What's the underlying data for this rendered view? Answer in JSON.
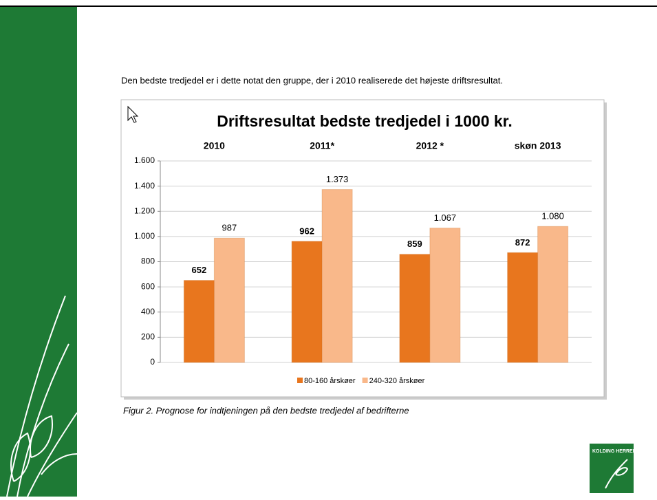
{
  "intro": "Den bedste tredjedel er i dette notat den gruppe, der i 2010 realiserede det højeste driftsresultat.",
  "caption": "Figur 2. Prognose for indtjeningen på den bedste tredjedel af bedrifterne",
  "logo": "KOLDING HERREDS",
  "chart_data": {
    "type": "bar",
    "title": "Driftsresultat bedste tredjedel i 1000 kr.",
    "categories": [
      "2010",
      "2011*",
      "2012 *",
      "skøn 2013"
    ],
    "series": [
      {
        "name": "80-160 årskøer",
        "color": "#e8761e",
        "values": [
          652,
          962,
          859,
          872
        ]
      },
      {
        "name": "240-320 årskøer",
        "color": "#f9b88a",
        "values": [
          987,
          1373,
          1067,
          1080
        ],
        "value_labels": [
          "987",
          "1.373",
          "1.067",
          "1.080"
        ]
      }
    ],
    "ylim": [
      0,
      1600
    ],
    "yticks": [
      0,
      200,
      400,
      600,
      800,
      {
        "value": 1000,
        "label": "1.000"
      },
      {
        "value": 1200,
        "label": "1.200"
      },
      {
        "value": 1400,
        "label": "1.400"
      },
      {
        "value": 1600,
        "label": "1.600"
      }
    ],
    "grid": true,
    "legend": "bottom"
  }
}
